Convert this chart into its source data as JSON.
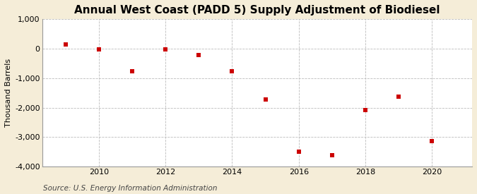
{
  "title": "Annual West Coast (PADD 5) Supply Adjustment of Biodiesel",
  "ylabel": "Thousand Barrels",
  "source": "Source: U.S. Energy Information Administration",
  "years": [
    2009,
    2010,
    2011,
    2012,
    2013,
    2014,
    2015,
    2016,
    2017,
    2018,
    2019,
    2020
  ],
  "values": [
    150,
    -30,
    -760,
    -30,
    -210,
    -760,
    -1720,
    -3490,
    -3620,
    -2080,
    -1620,
    -3130
  ],
  "marker_color": "#cc0000",
  "marker": "s",
  "marker_size": 4,
  "ylim": [
    -4000,
    1000
  ],
  "yticks": [
    -4000,
    -3000,
    -2000,
    -1000,
    0,
    1000
  ],
  "ytick_labels": [
    "-4,000",
    "-3,000",
    "-2,000",
    "-1,000",
    "0",
    "1,000"
  ],
  "xlim": [
    2008.3,
    2021.2
  ],
  "xticks": [
    2010,
    2012,
    2014,
    2016,
    2018,
    2020
  ],
  "background_color": "#f5edd8",
  "plot_background": "#ffffff",
  "grid_color": "#bbbbbb",
  "title_fontsize": 11,
  "label_fontsize": 8,
  "tick_fontsize": 8,
  "source_fontsize": 7.5
}
